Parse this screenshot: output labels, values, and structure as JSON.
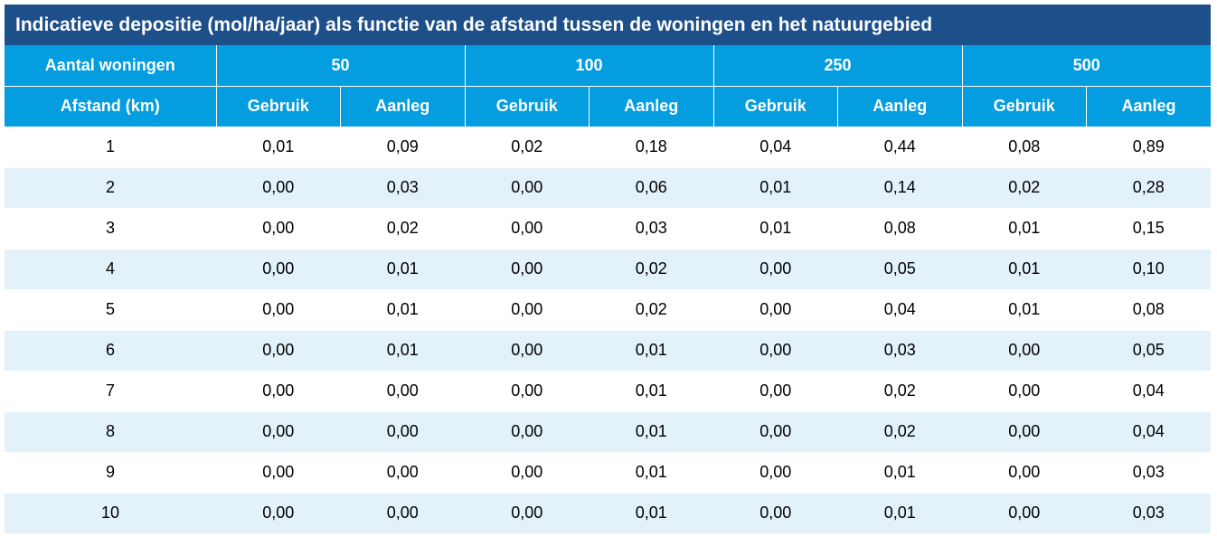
{
  "title": "Indicatieve depositie (mol/ha/jaar) als functie van de afstand tussen de woningen en het natuurgebied",
  "chart_data": {
    "type": "table",
    "title": "Indicatieve depositie (mol/ha/jaar) als functie van de afstand tussen de woningen en het natuurgebied",
    "header_row1_label": "Aantal woningen",
    "header_row2_label": "Afstand (km)",
    "groups": [
      "50",
      "100",
      "250",
      "500"
    ],
    "subcolumns": [
      "Gebruik",
      "Aanleg"
    ],
    "rows": [
      {
        "afstand": "1",
        "values": [
          "0,01",
          "0,09",
          "0,02",
          "0,18",
          "0,04",
          "0,44",
          "0,08",
          "0,89"
        ]
      },
      {
        "afstand": "2",
        "values": [
          "0,00",
          "0,03",
          "0,00",
          "0,06",
          "0,01",
          "0,14",
          "0,02",
          "0,28"
        ]
      },
      {
        "afstand": "3",
        "values": [
          "0,00",
          "0,02",
          "0,00",
          "0,03",
          "0,01",
          "0,08",
          "0,01",
          "0,15"
        ]
      },
      {
        "afstand": "4",
        "values": [
          "0,00",
          "0,01",
          "0,00",
          "0,02",
          "0,00",
          "0,05",
          "0,01",
          "0,10"
        ]
      },
      {
        "afstand": "5",
        "values": [
          "0,00",
          "0,01",
          "0,00",
          "0,02",
          "0,00",
          "0,04",
          "0,01",
          "0,08"
        ]
      },
      {
        "afstand": "6",
        "values": [
          "0,00",
          "0,01",
          "0,00",
          "0,01",
          "0,00",
          "0,03",
          "0,00",
          "0,05"
        ]
      },
      {
        "afstand": "7",
        "values": [
          "0,00",
          "0,00",
          "0,00",
          "0,01",
          "0,00",
          "0,02",
          "0,00",
          "0,04"
        ]
      },
      {
        "afstand": "8",
        "values": [
          "0,00",
          "0,00",
          "0,00",
          "0,01",
          "0,00",
          "0,02",
          "0,00",
          "0,04"
        ]
      },
      {
        "afstand": "9",
        "values": [
          "0,00",
          "0,00",
          "0,00",
          "0,01",
          "0,00",
          "0,01",
          "0,00",
          "0,03"
        ]
      },
      {
        "afstand": "10",
        "values": [
          "0,00",
          "0,00",
          "0,00",
          "0,01",
          "0,00",
          "0,01",
          "0,00",
          "0,03"
        ]
      }
    ]
  },
  "colors": {
    "title_bg": "#1d4f8a",
    "header_bg": "#049de0",
    "stripe_bg": "#e3f1fb"
  }
}
